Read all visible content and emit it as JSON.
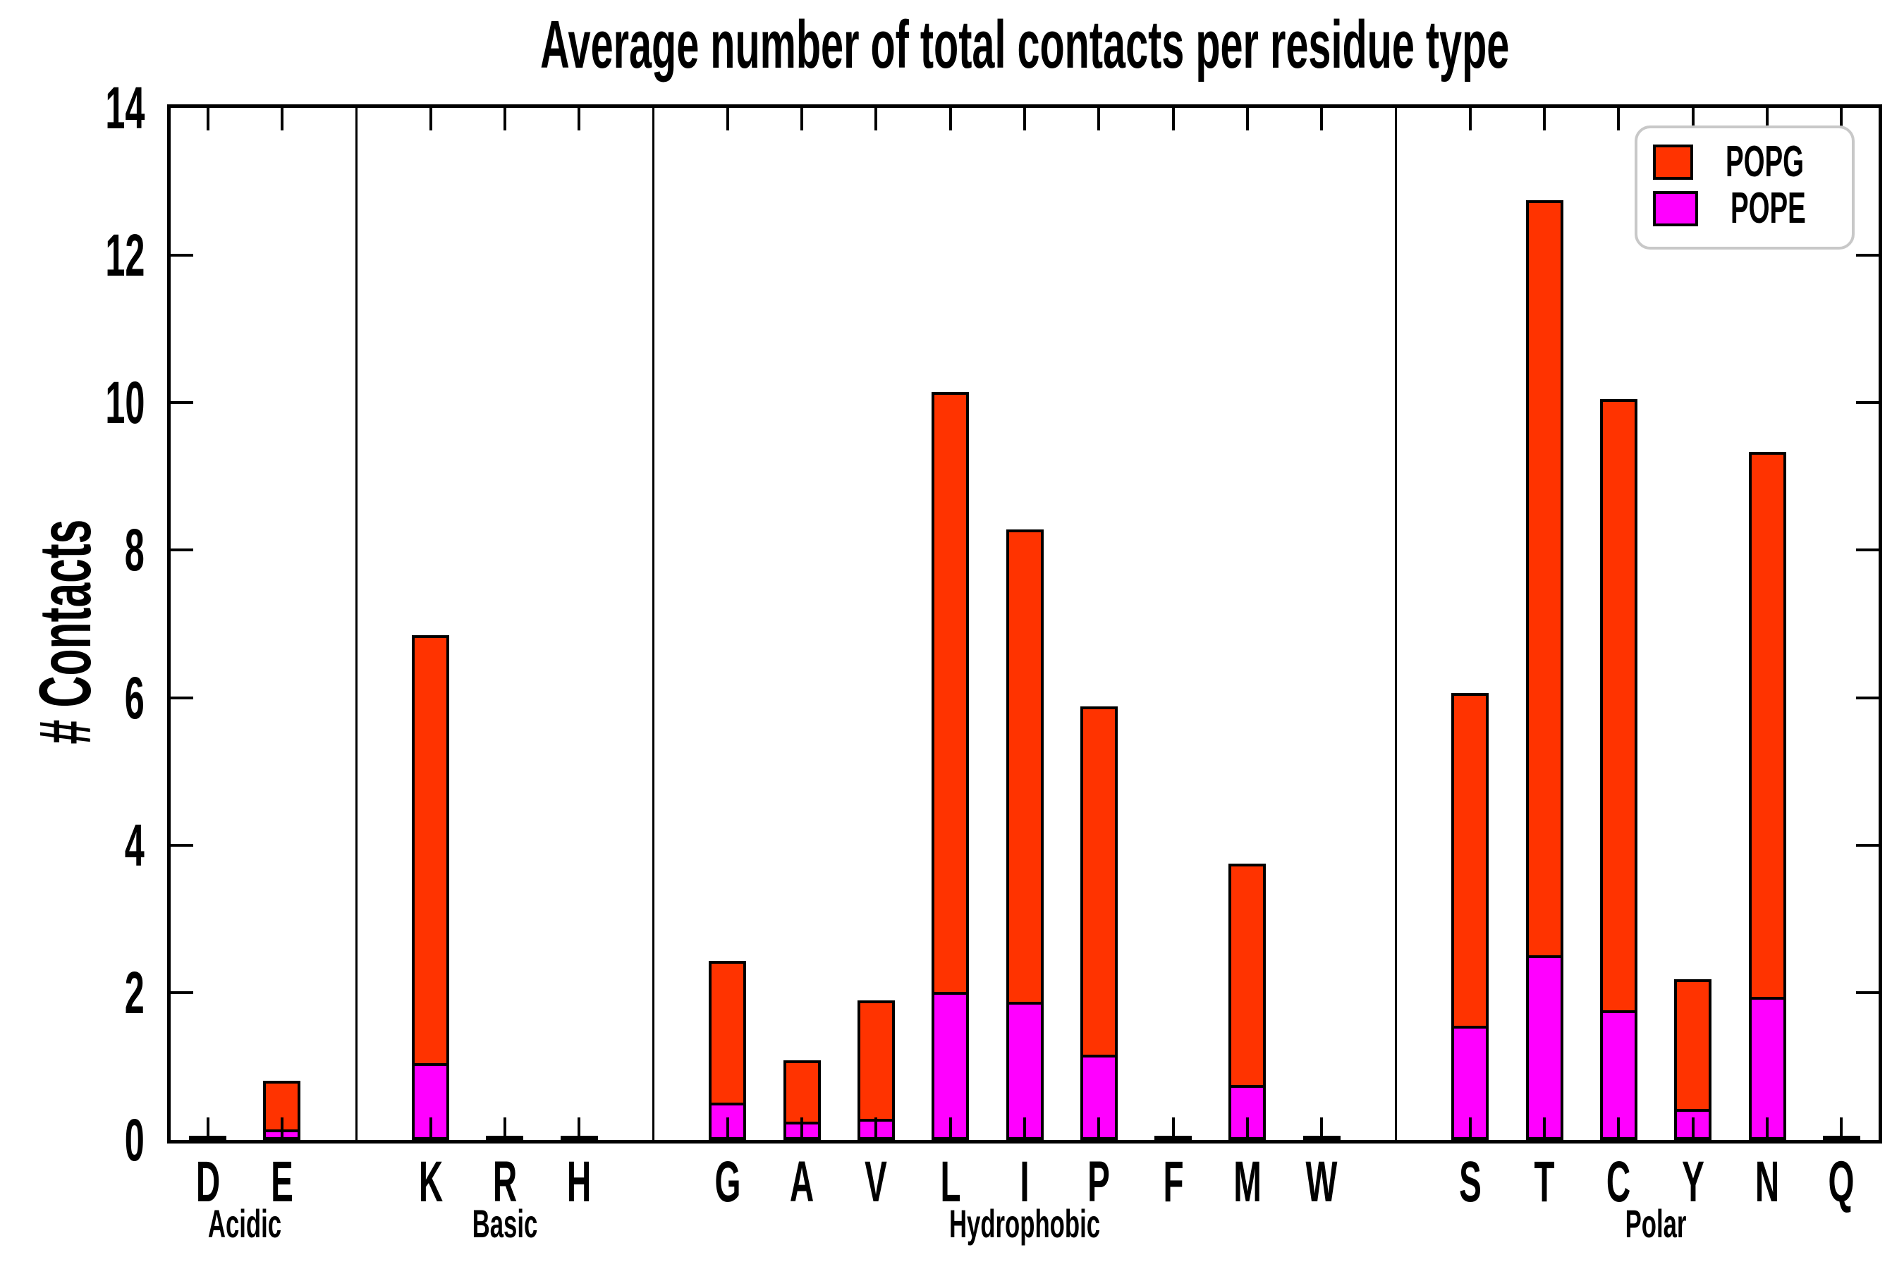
{
  "chart_data": {
    "type": "bar",
    "stacked": true,
    "title": "Average number of total contacts per residue type",
    "xlabel": "",
    "ylabel": "# Contacts",
    "ylim": [
      0,
      14
    ],
    "yticks": [
      0,
      2,
      4,
      6,
      8,
      10,
      12,
      14
    ],
    "grid": false,
    "legend_position": "upper right",
    "stack_order_bottom_to_top": [
      "POPE",
      "POPG"
    ],
    "series": [
      {
        "name": "POPG",
        "color": "#ff3300"
      },
      {
        "name": "POPE",
        "color": "#ff00ff"
      }
    ],
    "groups": [
      {
        "label": "Acidic",
        "residues": [
          "D",
          "E"
        ]
      },
      {
        "label": "Basic",
        "residues": [
          "K",
          "R",
          "H"
        ]
      },
      {
        "label": "Hydrophobic",
        "residues": [
          "G",
          "A",
          "V",
          "L",
          "I",
          "P",
          "F",
          "M",
          "W"
        ]
      },
      {
        "label": "Polar",
        "residues": [
          "S",
          "T",
          "C",
          "Y",
          "N",
          "Q"
        ]
      }
    ],
    "values": {
      "D": {
        "POPE": 0.01,
        "POPG": 0.02,
        "total": 0.03
      },
      "E": {
        "POPE": 0.11,
        "POPG": 0.69,
        "total": 0.8
      },
      "K": {
        "POPE": 1.0,
        "POPG": 5.85,
        "total": 6.85
      },
      "R": {
        "POPE": 0.01,
        "POPG": 0.02,
        "total": 0.03
      },
      "H": {
        "POPE": 0.01,
        "POPG": 0.02,
        "total": 0.03
      },
      "G": {
        "POPE": 0.47,
        "POPG": 1.96,
        "total": 2.43
      },
      "A": {
        "POPE": 0.21,
        "POPG": 0.87,
        "total": 1.08
      },
      "V": {
        "POPE": 0.25,
        "POPG": 1.64,
        "total": 1.89
      },
      "L": {
        "POPE": 1.97,
        "POPG": 8.18,
        "total": 10.15
      },
      "I": {
        "POPE": 1.84,
        "POPG": 6.44,
        "total": 8.28
      },
      "P": {
        "POPE": 1.12,
        "POPG": 4.76,
        "total": 5.88
      },
      "F": {
        "POPE": 0.01,
        "POPG": 0.02,
        "total": 0.03
      },
      "M": {
        "POPE": 0.71,
        "POPG": 3.04,
        "total": 3.75
      },
      "W": {
        "POPE": 0.01,
        "POPG": 0.02,
        "total": 0.03
      },
      "S": {
        "POPE": 1.51,
        "POPG": 4.55,
        "total": 6.06
      },
      "T": {
        "POPE": 2.47,
        "POPG": 10.28,
        "total": 12.75
      },
      "C": {
        "POPE": 1.72,
        "POPG": 8.33,
        "total": 10.05
      },
      "Y": {
        "POPE": 0.38,
        "POPG": 1.8,
        "total": 2.18
      },
      "N": {
        "POPE": 1.9,
        "POPG": 7.43,
        "total": 9.33
      },
      "Q": {
        "POPE": 0.01,
        "POPG": 0.02,
        "total": 0.03
      }
    }
  },
  "legend": {
    "entries": [
      {
        "label": "POPG",
        "color": "#ff3300"
      },
      {
        "label": "POPE",
        "color": "#ff00ff"
      }
    ]
  },
  "colors": {
    "popg": "#ff3300",
    "pope": "#ff00ff",
    "axis": "#000000",
    "legend_border": "#c8c8c8",
    "background": "#ffffff"
  }
}
